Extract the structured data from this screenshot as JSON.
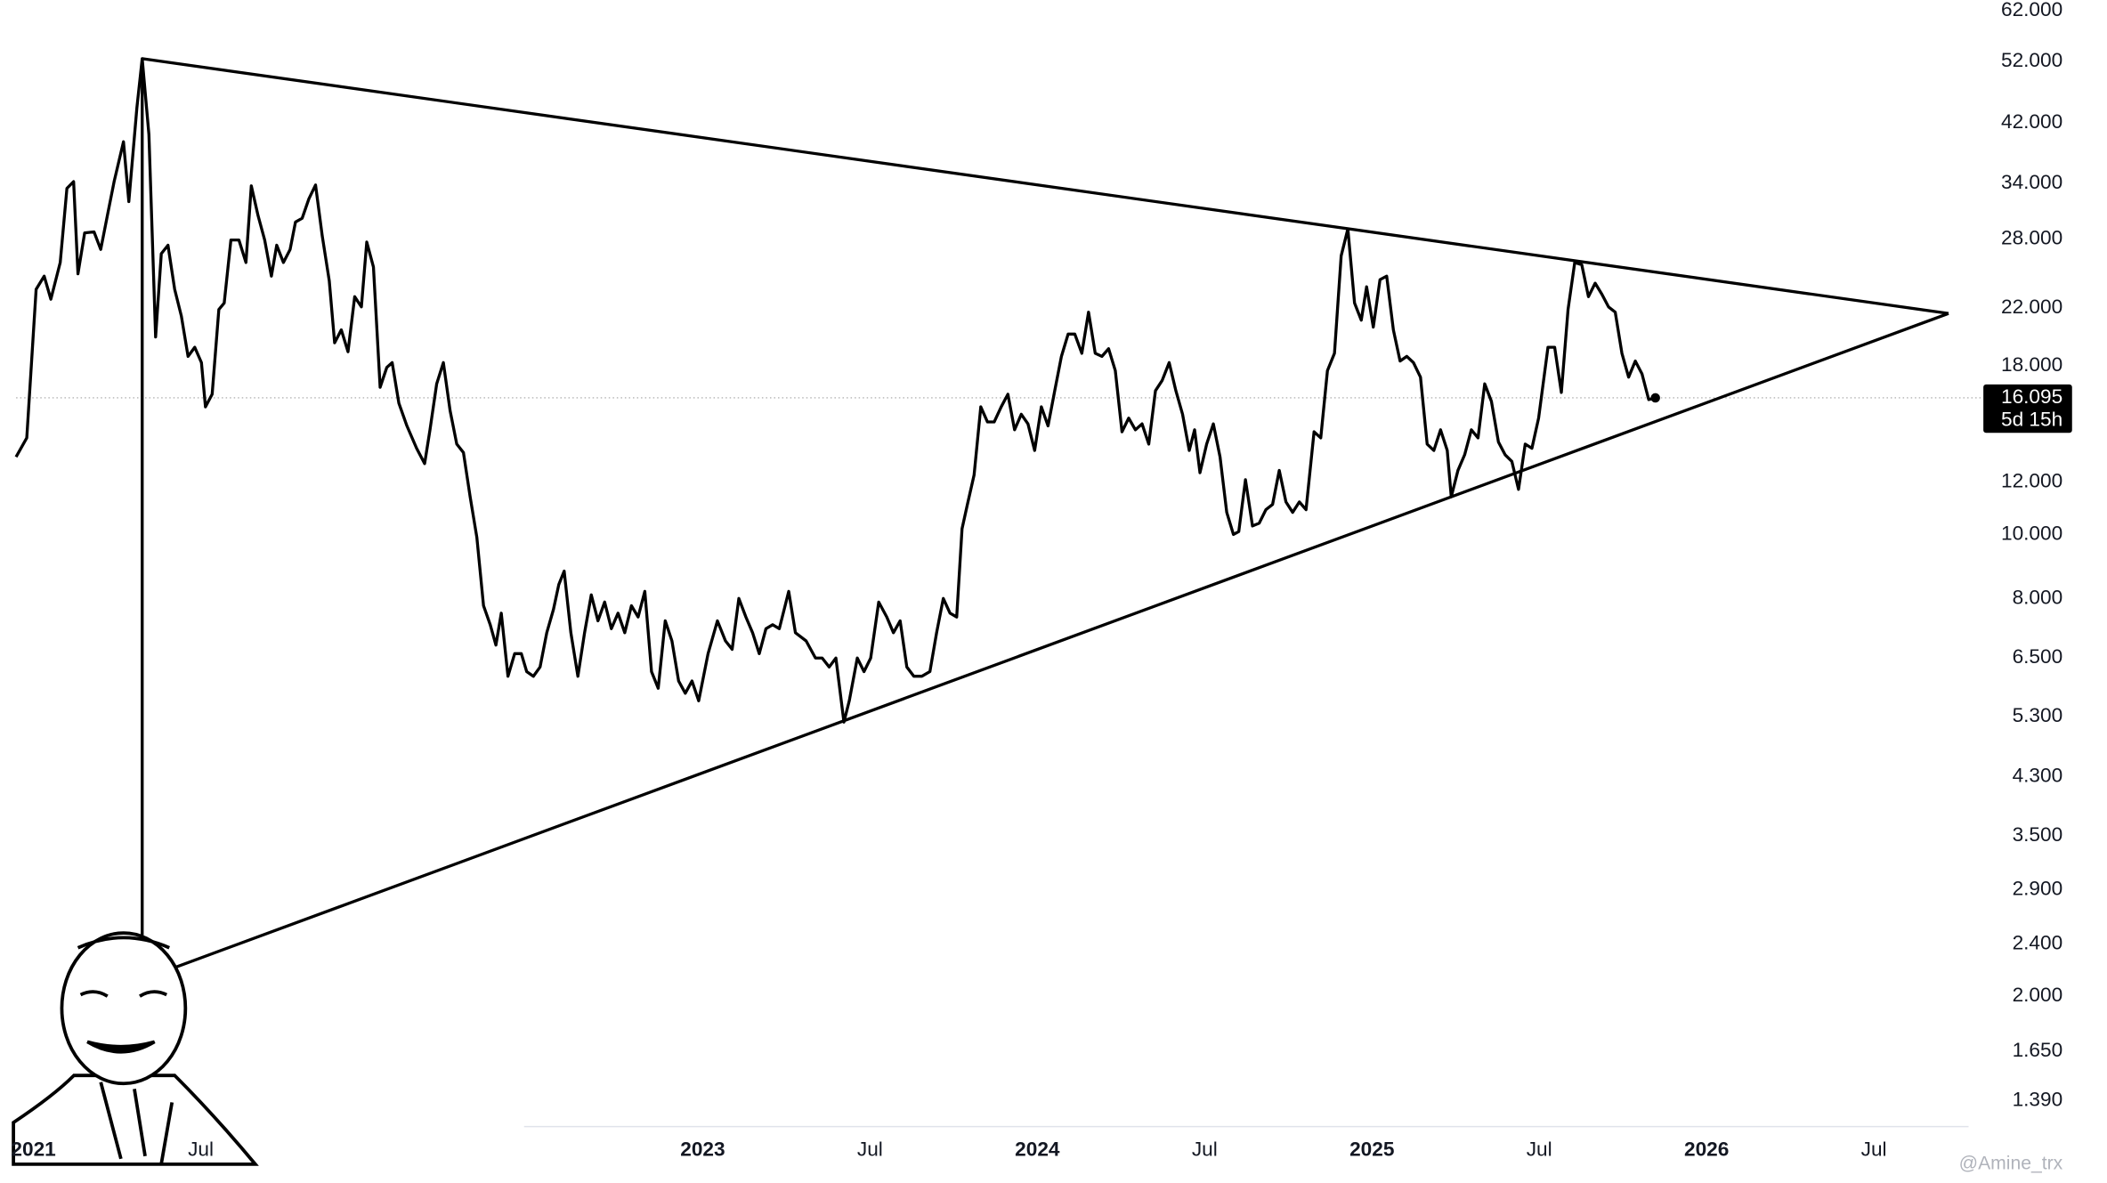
{
  "chart_data": {
    "type": "line",
    "log_scale": true,
    "grid": false,
    "xlim": [
      2020.9,
      2026.783
    ],
    "ylim": [
      1.27,
      64.4
    ],
    "xticks": [
      2021,
      {
        "value": 2021.5,
        "label": "Jul"
      },
      2023,
      {
        "value": 2023.5,
        "label": "Jul"
      },
      2024,
      {
        "value": 2024.5,
        "label": "Jul"
      },
      2025,
      {
        "value": 2025.5,
        "label": "Jul"
      },
      2026,
      {
        "value": 2026.5,
        "label": "Jul"
      }
    ],
    "yticks": [
      {
        "value": 62,
        "label": "62.000"
      },
      {
        "value": 52,
        "label": "52.000"
      },
      {
        "value": 42,
        "label": "42.000"
      },
      {
        "value": 34,
        "label": "34.000"
      },
      {
        "value": 28,
        "label": "28.000"
      },
      {
        "value": 22,
        "label": "22.000"
      },
      {
        "value": 18,
        "label": "18.000"
      },
      {
        "value": 12,
        "label": "12.000"
      },
      {
        "value": 10,
        "label": "10.000"
      },
      {
        "value": 8,
        "label": "8.000"
      },
      {
        "value": 6.5,
        "label": "6.500"
      },
      {
        "value": 5.3,
        "label": "5.300"
      },
      {
        "value": 4.3,
        "label": "4.300"
      },
      {
        "value": 3.5,
        "label": "3.500"
      },
      {
        "value": 2.9,
        "label": "2.900"
      },
      {
        "value": 2.4,
        "label": "2.400"
      },
      {
        "value": 2,
        "label": "2.000"
      },
      {
        "value": 1.65,
        "label": "1.650"
      },
      {
        "value": 1.39,
        "label": "1.390"
      }
    ],
    "series": [
      {
        "color": "#000000",
        "x": [
          2020.948,
          2020.98,
          2021.008,
          2021.032,
          2021.052,
          2021.08,
          2021.1,
          2021.12,
          2021.133,
          2021.153,
          2021.181,
          2021.201,
          2021.221,
          2021.241,
          2021.269,
          2021.285,
          2021.309,
          2021.325,
          2021.345,
          2021.365,
          2021.382,
          2021.402,
          2021.422,
          2021.442,
          2021.462,
          2021.482,
          2021.502,
          2021.514,
          2021.534,
          2021.554,
          2021.57,
          2021.59,
          2021.614,
          2021.635,
          2021.651,
          2021.671,
          2021.691,
          2021.711,
          2021.727,
          2021.747,
          2021.767,
          2021.783,
          2021.803,
          2021.823,
          2021.843,
          2021.863,
          2021.884,
          2021.9,
          2021.92,
          2021.94,
          2021.96,
          2021.98,
          2021.996,
          2022.016,
          2022.036,
          2022.056,
          2022.072,
          2022.092,
          2022.116,
          2022.145,
          2022.169,
          2022.185,
          2022.205,
          2022.225,
          2022.245,
          2022.265,
          2022.285,
          2022.305,
          2022.325,
          2022.345,
          2022.365,
          2022.382,
          2022.398,
          2022.418,
          2022.438,
          2022.458,
          2022.474,
          2022.494,
          2022.514,
          2022.534,
          2022.554,
          2022.57,
          2022.586,
          2022.606,
          2022.627,
          2022.647,
          2022.667,
          2022.687,
          2022.707,
          2022.727,
          2022.747,
          2022.767,
          2022.787,
          2022.807,
          2022.827,
          2022.847,
          2022.867,
          2022.888,
          2022.908,
          2022.928,
          2022.948,
          2022.968,
          2022.988,
          2023.016,
          2023.044,
          2023.068,
          2023.088,
          2023.108,
          2023.129,
          2023.149,
          2023.169,
          2023.189,
          2023.209,
          2023.229,
          2023.257,
          2023.277,
          2023.309,
          2023.337,
          2023.357,
          2023.378,
          2023.398,
          2023.422,
          2023.438,
          2023.462,
          2023.482,
          2023.502,
          2023.526,
          2023.55,
          2023.57,
          2023.59,
          2023.61,
          2023.631,
          2023.655,
          2023.679,
          2023.699,
          2023.719,
          2023.739,
          2023.759,
          2023.775,
          2023.791,
          2023.811,
          2023.831,
          2023.851,
          2023.871,
          2023.892,
          2023.912,
          2023.932,
          2023.952,
          2023.972,
          2023.992,
          2024.012,
          2024.032,
          2024.052,
          2024.072,
          2024.092,
          2024.112,
          2024.133,
          2024.153,
          2024.173,
          2024.193,
          2024.213,
          2024.233,
          2024.253,
          2024.273,
          2024.293,
          2024.313,
          2024.333,
          2024.353,
          2024.373,
          2024.394,
          2024.414,
          2024.434,
          2024.454,
          2024.47,
          2024.486,
          2024.506,
          2024.526,
          2024.546,
          2024.566,
          2024.586,
          2024.602,
          2024.622,
          2024.643,
          2024.663,
          2024.683,
          2024.703,
          2024.723,
          2024.743,
          2024.763,
          2024.783,
          2024.803,
          2024.827,
          2024.847,
          2024.867,
          2024.888,
          2024.908,
          2024.928,
          2024.948,
          2024.968,
          2024.984,
          2025.004,
          2025.024,
          2025.044,
          2025.064,
          2025.084,
          2025.104,
          2025.124,
          2025.145,
          2025.165,
          2025.185,
          2025.205,
          2025.225,
          2025.237,
          2025.257,
          2025.277,
          2025.297,
          2025.317,
          2025.337,
          2025.357,
          2025.378,
          2025.398,
          2025.418,
          2025.438,
          2025.458,
          2025.478,
          2025.498,
          2025.526,
          2025.546,
          2025.566,
          2025.586,
          2025.606,
          2025.627,
          2025.647,
          2025.667,
          2025.687,
          2025.707,
          2025.727,
          2025.747,
          2025.767,
          2025.787,
          2025.807,
          2025.827,
          2025.847
        ],
        "values": [
          13.1,
          14.0,
          23.5,
          24.6,
          22.7,
          25.8,
          33.4,
          34.2,
          24.8,
          28.6,
          28.7,
          27.0,
          30.4,
          34.2,
          39.3,
          31.9,
          44.2,
          52.5,
          40.3,
          19.9,
          26.6,
          27.4,
          23.5,
          21.4,
          18.6,
          19.2,
          18.2,
          15.6,
          16.3,
          21.9,
          22.4,
          27.9,
          27.9,
          25.8,
          33.7,
          30.4,
          27.9,
          24.6,
          27.4,
          25.8,
          27.0,
          29.7,
          30.1,
          32.2,
          33.8,
          28.3,
          24.2,
          19.5,
          20.4,
          18.9,
          22.9,
          22.1,
          27.7,
          25.4,
          16.7,
          17.9,
          18.2,
          15.8,
          14.6,
          13.5,
          12.8,
          14.4,
          16.9,
          18.2,
          15.4,
          13.7,
          13.3,
          11.4,
          9.9,
          7.8,
          7.3,
          6.8,
          7.6,
          6.1,
          6.6,
          6.6,
          6.2,
          6.1,
          6.3,
          7.1,
          7.7,
          8.4,
          8.8,
          7.1,
          6.1,
          7.1,
          8.1,
          7.4,
          7.9,
          7.2,
          7.6,
          7.1,
          7.8,
          7.5,
          8.2,
          6.2,
          5.85,
          7.4,
          6.9,
          6.0,
          5.75,
          6.0,
          5.6,
          6.6,
          7.4,
          6.9,
          6.7,
          8.0,
          7.5,
          7.1,
          6.6,
          7.2,
          7.3,
          7.2,
          8.2,
          7.1,
          6.9,
          6.5,
          6.5,
          6.3,
          6.5,
          5.2,
          5.6,
          6.5,
          6.2,
          6.5,
          7.9,
          7.5,
          7.1,
          7.4,
          6.3,
          6.1,
          6.1,
          6.2,
          7.1,
          8.0,
          7.6,
          7.5,
          10.2,
          11.1,
          12.3,
          15.6,
          14.8,
          14.8,
          15.6,
          16.3,
          14.4,
          15.2,
          14.7,
          13.4,
          15.6,
          14.6,
          16.5,
          18.6,
          20.1,
          20.1,
          18.8,
          21.7,
          18.8,
          18.6,
          19.1,
          17.7,
          14.3,
          15.0,
          14.4,
          14.7,
          13.7,
          16.5,
          17.1,
          18.2,
          16.5,
          15.2,
          13.4,
          14.4,
          12.4,
          13.7,
          14.7,
          13.1,
          10.8,
          10.0,
          10.1,
          12.1,
          10.3,
          10.4,
          10.9,
          11.1,
          12.5,
          11.2,
          10.8,
          11.2,
          10.9,
          14.3,
          14.0,
          17.7,
          18.8,
          26.4,
          29.0,
          22.4,
          21.1,
          23.7,
          20.6,
          24.3,
          24.6,
          20.4,
          18.3,
          18.6,
          18.2,
          17.3,
          13.7,
          13.4,
          14.4,
          13.4,
          11.4,
          12.5,
          13.2,
          14.4,
          14.0,
          16.9,
          15.9,
          13.8,
          13.2,
          12.9,
          11.7,
          13.7,
          13.5,
          15.0,
          19.2,
          19.2,
          16.4,
          21.9,
          25.8,
          25.6,
          22.9,
          24.0,
          23.1,
          22.1,
          21.7,
          18.8,
          17.3,
          18.3,
          17.5,
          16.0,
          16.095
        ]
      }
    ],
    "trendlines": [
      {
        "x": [
          2021.325,
          2026.723
        ],
        "values": [
          52.5,
          21.6
        ]
      },
      {
        "x": [
          2021.325,
          2026.723
        ],
        "values": [
          2.12,
          21.6
        ]
      },
      {
        "x": [
          2021.325,
          2021.325
        ],
        "values": [
          52.5,
          2.12
        ]
      }
    ],
    "last_price": {
      "value": 16.095,
      "label": "16.095",
      "countdown": "5d 15h"
    },
    "watermark": "@Amine_trx"
  }
}
